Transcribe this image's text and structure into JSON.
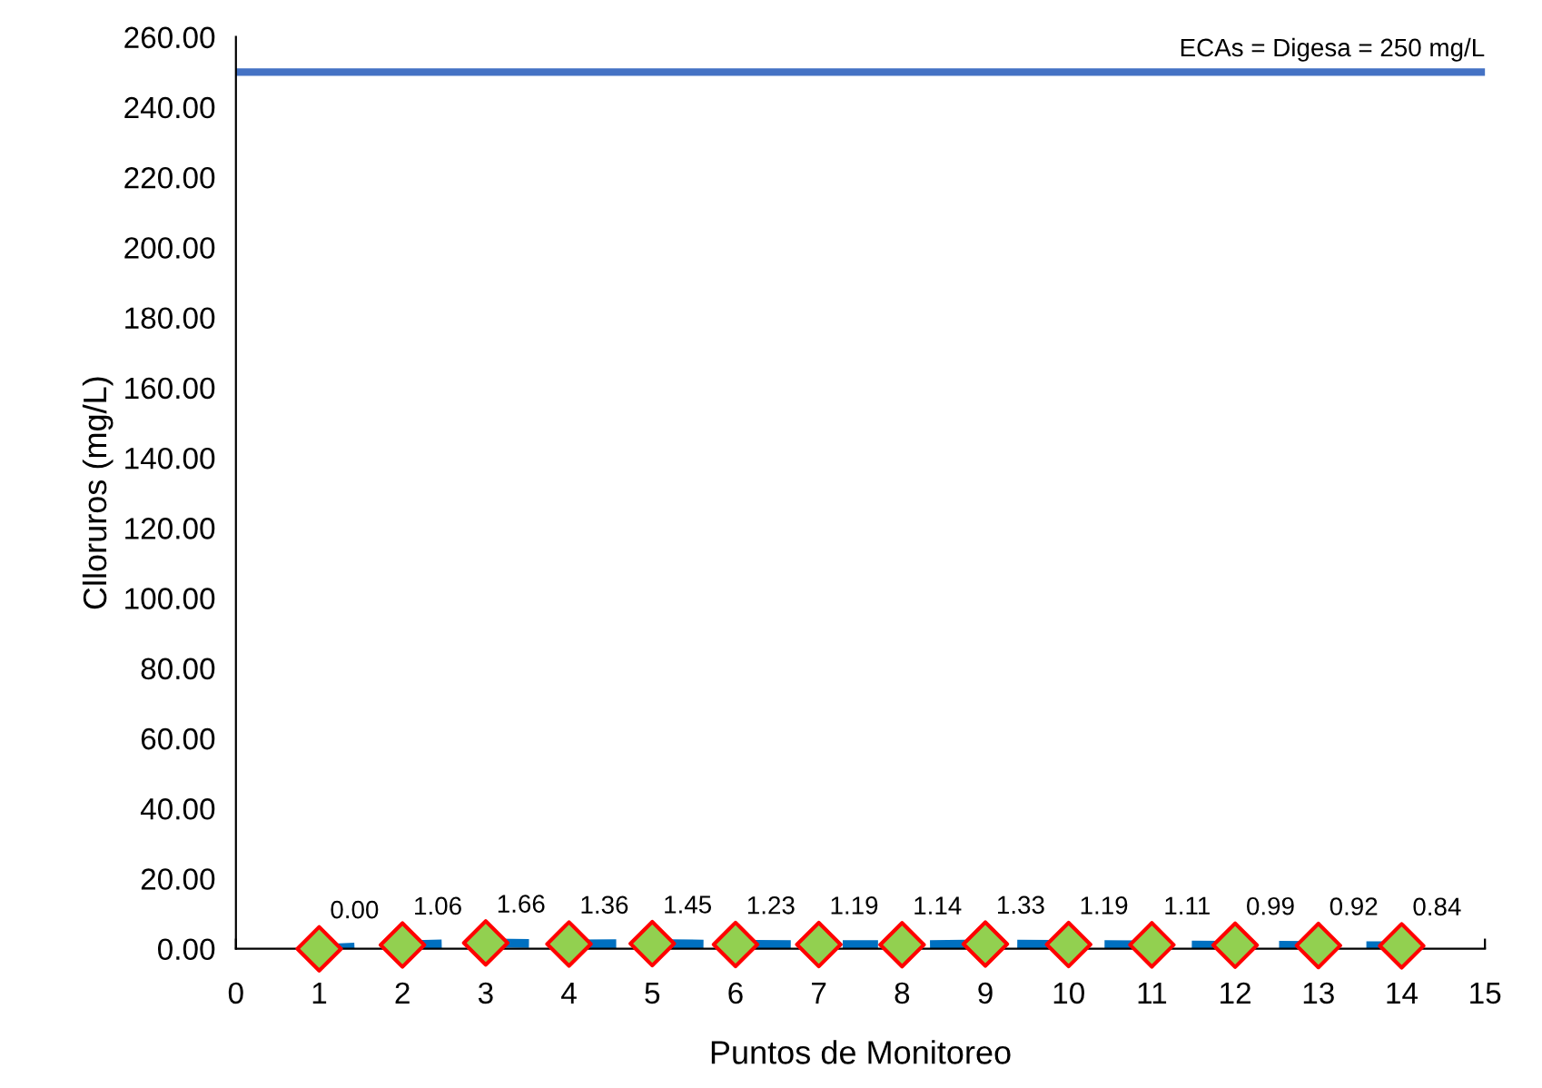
{
  "chart_data": {
    "type": "line",
    "xlabel": "Puntos de Monitoreo",
    "ylabel": "Clloruros (mg/L)",
    "x": [
      1,
      2,
      3,
      4,
      5,
      6,
      7,
      8,
      9,
      10,
      11,
      12,
      13,
      14
    ],
    "series": [
      {
        "color": "#0070c0",
        "colors": [
          "#92d050",
          "#92d050",
          "#92d050",
          "#92d050",
          "#92d050",
          "#92d050",
          "#92d050",
          "#92d050",
          "#92d050",
          "#92d050",
          "#92d050",
          "#92d050",
          "#92d050",
          "#92d050"
        ],
        "values": [
          0.0,
          1.06,
          1.66,
          1.36,
          1.45,
          1.23,
          1.19,
          1.14,
          1.33,
          1.19,
          1.11,
          0.99,
          0.92,
          0.84
        ]
      }
    ],
    "value_labels": [
      "0.00",
      "1.06",
      "1.66",
      "1.36",
      "1.45",
      "1.23",
      "1.19",
      "1.14",
      "1.33",
      "1.19",
      "1.11",
      "0.99",
      "0.92",
      "0.84"
    ],
    "marker": "diamond",
    "line_style": "dashed",
    "grid": false,
    "legend": false,
    "xlim": [
      0,
      15
    ],
    "xticks": [
      0,
      1,
      2,
      3,
      4,
      5,
      6,
      7,
      8,
      9,
      10,
      11,
      12,
      13,
      14,
      15
    ],
    "ylim": [
      0,
      260
    ],
    "yticks": [
      {
        "value": 0,
        "label": "0.00"
      },
      {
        "value": 20,
        "label": "20.00"
      },
      {
        "value": 40,
        "label": "40.00"
      },
      {
        "value": 60,
        "label": "60.00"
      },
      {
        "value": 80,
        "label": "80.00"
      },
      {
        "value": 100,
        "label": "100.00"
      },
      {
        "value": 120,
        "label": "120.00"
      },
      {
        "value": 140,
        "label": "140.00"
      },
      {
        "value": 160,
        "label": "160.00"
      },
      {
        "value": 180,
        "label": "180.00"
      },
      {
        "value": 200,
        "label": "200.00"
      },
      {
        "value": 220,
        "label": "220.00"
      },
      {
        "value": 240,
        "label": "240.00"
      },
      {
        "value": 260,
        "label": "260.00"
      }
    ],
    "ref_lines": [
      {
        "axis": "y",
        "value": 250,
        "label": "ECAs = Digesa = 250 mg/L",
        "color": "#4472c4"
      }
    ]
  }
}
